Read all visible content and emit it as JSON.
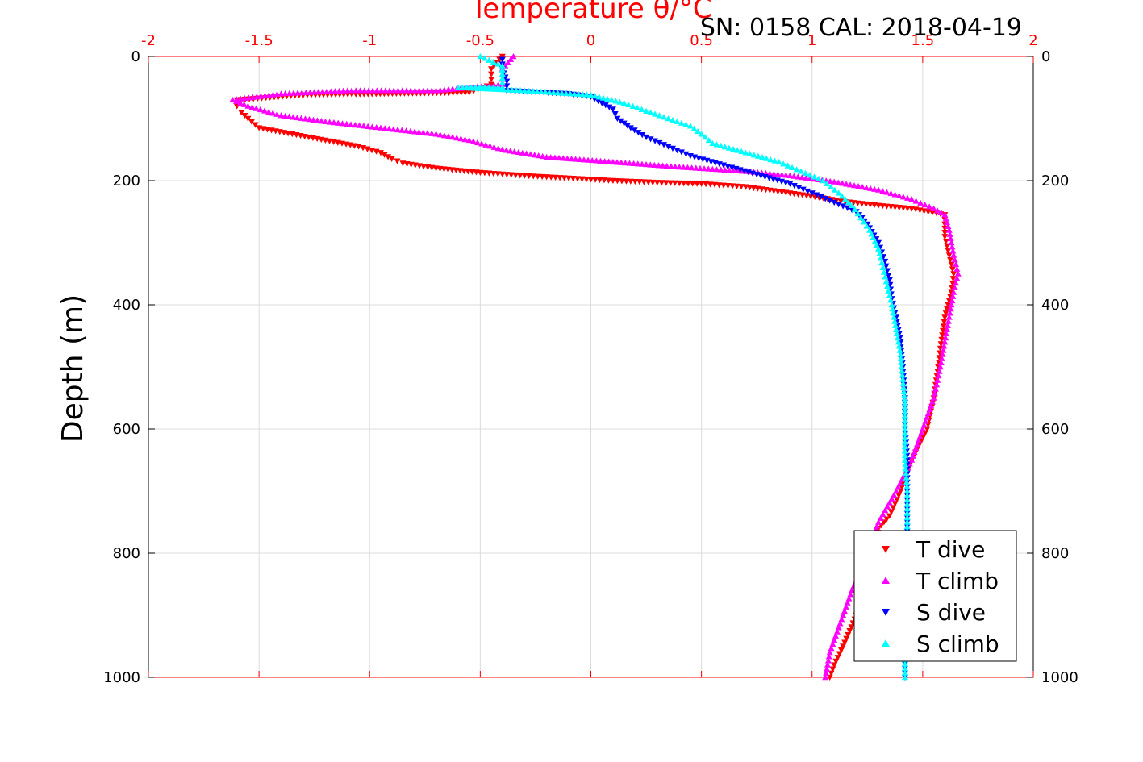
{
  "chart_data": {
    "type": "scatter",
    "title": "Temperature θ/°C",
    "annotation": "SN: 0158  CAL: 2018-04-19",
    "xlabel": "Temperature θ/°C",
    "ylabel": "Depth (m)",
    "xlim": [
      -2,
      2
    ],
    "ylim": [
      0,
      1000
    ],
    "y_reversed": true,
    "x_ticks": [
      "-2",
      "-1.5",
      "-1",
      "-0.5",
      "0",
      "0.5",
      "1",
      "1.5",
      "2"
    ],
    "y_ticks": [
      "0",
      "200",
      "400",
      "600",
      "800",
      "1000"
    ],
    "grid": true,
    "legend_position": "bottom-right",
    "colors": {
      "axis_top": "#ff0000",
      "axis_left": "#000000",
      "grid": "#dcdcdc"
    },
    "series": [
      {
        "name": "T dive",
        "color": "#ff0000",
        "marker": "triangle-down",
        "points": [
          [
            -0.4,
            0
          ],
          [
            -0.45,
            20
          ],
          [
            -0.45,
            45
          ],
          [
            -0.55,
            58
          ],
          [
            -1.3,
            62
          ],
          [
            -1.6,
            70
          ],
          [
            -1.6,
            80
          ],
          [
            -1.58,
            90
          ],
          [
            -1.55,
            100
          ],
          [
            -1.5,
            115
          ],
          [
            -1.35,
            125
          ],
          [
            -1.2,
            135
          ],
          [
            -1.05,
            145
          ],
          [
            -0.95,
            155
          ],
          [
            -0.9,
            165
          ],
          [
            -0.85,
            172
          ],
          [
            -0.7,
            180
          ],
          [
            -0.5,
            187
          ],
          [
            -0.3,
            192
          ],
          [
            -0.1,
            196
          ],
          [
            0.1,
            200
          ],
          [
            0.3,
            203
          ],
          [
            0.5,
            205
          ],
          [
            0.7,
            210
          ],
          [
            0.9,
            220
          ],
          [
            1.05,
            228
          ],
          [
            1.15,
            234
          ],
          [
            1.3,
            240
          ],
          [
            1.45,
            245
          ],
          [
            1.6,
            255
          ],
          [
            1.6,
            270
          ],
          [
            1.6,
            290
          ],
          [
            1.62,
            320
          ],
          [
            1.64,
            350
          ],
          [
            1.63,
            380
          ],
          [
            1.6,
            420
          ],
          [
            1.58,
            470
          ],
          [
            1.57,
            500
          ],
          [
            1.55,
            550
          ],
          [
            1.52,
            600
          ],
          [
            1.45,
            650
          ],
          [
            1.4,
            700
          ],
          [
            1.35,
            740
          ],
          [
            1.3,
            760
          ],
          [
            1.28,
            800
          ],
          [
            1.24,
            850
          ],
          [
            1.2,
            900
          ],
          [
            1.14,
            950
          ],
          [
            1.1,
            980
          ],
          [
            1.08,
            1000
          ]
        ]
      },
      {
        "name": "T climb",
        "color": "#ff00ff",
        "marker": "triangle-up",
        "points": [
          [
            -0.35,
            0
          ],
          [
            -0.4,
            20
          ],
          [
            -0.4,
            45
          ],
          [
            -0.7,
            55
          ],
          [
            -1.1,
            55
          ],
          [
            -1.4,
            60
          ],
          [
            -1.62,
            70
          ],
          [
            -1.55,
            80
          ],
          [
            -1.4,
            95
          ],
          [
            -1.2,
            105
          ],
          [
            -0.95,
            115
          ],
          [
            -0.7,
            125
          ],
          [
            -0.55,
            135
          ],
          [
            -0.4,
            150
          ],
          [
            -0.2,
            162
          ],
          [
            0.1,
            170
          ],
          [
            0.4,
            178
          ],
          [
            0.7,
            185
          ],
          [
            0.9,
            192
          ],
          [
            1.1,
            202
          ],
          [
            1.3,
            215
          ],
          [
            1.45,
            230
          ],
          [
            1.55,
            245
          ],
          [
            1.6,
            255
          ],
          [
            1.62,
            280
          ],
          [
            1.64,
            320
          ],
          [
            1.66,
            350
          ],
          [
            1.64,
            380
          ],
          [
            1.62,
            420
          ],
          [
            1.6,
            460
          ],
          [
            1.58,
            500
          ],
          [
            1.55,
            550
          ],
          [
            1.5,
            600
          ],
          [
            1.45,
            650
          ],
          [
            1.38,
            700
          ],
          [
            1.3,
            750
          ],
          [
            1.25,
            800
          ],
          [
            1.18,
            860
          ],
          [
            1.12,
            920
          ],
          [
            1.08,
            960
          ],
          [
            1.06,
            1000
          ]
        ]
      },
      {
        "name": "S dive",
        "color": "#0000ff",
        "marker": "triangle-down",
        "points": [
          [
            -0.4,
            5
          ],
          [
            -0.4,
            20
          ],
          [
            -0.38,
            40
          ],
          [
            -0.38,
            55
          ],
          [
            -0.1,
            60
          ],
          [
            0,
            65
          ],
          [
            0.05,
            75
          ],
          [
            0.1,
            85
          ],
          [
            0.12,
            100
          ],
          [
            0.18,
            115
          ],
          [
            0.25,
            130
          ],
          [
            0.35,
            145
          ],
          [
            0.45,
            160
          ],
          [
            0.6,
            175
          ],
          [
            0.75,
            190
          ],
          [
            0.9,
            205
          ],
          [
            1.0,
            220
          ],
          [
            1.1,
            235
          ],
          [
            1.2,
            250
          ],
          [
            1.25,
            270
          ],
          [
            1.3,
            300
          ],
          [
            1.33,
            330
          ],
          [
            1.35,
            360
          ],
          [
            1.36,
            390
          ],
          [
            1.38,
            420
          ],
          [
            1.4,
            460
          ],
          [
            1.41,
            500
          ],
          [
            1.42,
            550
          ],
          [
            1.42,
            600
          ],
          [
            1.43,
            650
          ],
          [
            1.43,
            700
          ],
          [
            1.43,
            750
          ],
          [
            1.43,
            800
          ],
          [
            1.42,
            850
          ],
          [
            1.42,
            900
          ],
          [
            1.42,
            950
          ],
          [
            1.42,
            1000
          ]
        ]
      },
      {
        "name": "S climb",
        "color": "#00ffff",
        "marker": "triangle-up",
        "points": [
          [
            -0.5,
            0
          ],
          [
            -0.4,
            15
          ],
          [
            -0.4,
            35
          ],
          [
            -0.4,
            50
          ],
          [
            -0.6,
            50
          ],
          [
            -0.3,
            55
          ],
          [
            0,
            62
          ],
          [
            0.15,
            75
          ],
          [
            0.25,
            88
          ],
          [
            0.35,
            100
          ],
          [
            0.45,
            112
          ],
          [
            0.5,
            125
          ],
          [
            0.55,
            140
          ],
          [
            0.7,
            155
          ],
          [
            0.85,
            170
          ],
          [
            0.95,
            185
          ],
          [
            1.05,
            200
          ],
          [
            1.12,
            220
          ],
          [
            1.18,
            240
          ],
          [
            1.22,
            260
          ],
          [
            1.26,
            280
          ],
          [
            1.3,
            310
          ],
          [
            1.32,
            340
          ],
          [
            1.34,
            370
          ],
          [
            1.36,
            400
          ],
          [
            1.38,
            440
          ],
          [
            1.4,
            480
          ],
          [
            1.41,
            520
          ],
          [
            1.42,
            560
          ],
          [
            1.42,
            600
          ],
          [
            1.42,
            650
          ],
          [
            1.43,
            700
          ],
          [
            1.43,
            750
          ],
          [
            1.43,
            800
          ],
          [
            1.42,
            850
          ],
          [
            1.42,
            900
          ],
          [
            1.42,
            950
          ],
          [
            1.42,
            1000
          ]
        ]
      }
    ]
  }
}
